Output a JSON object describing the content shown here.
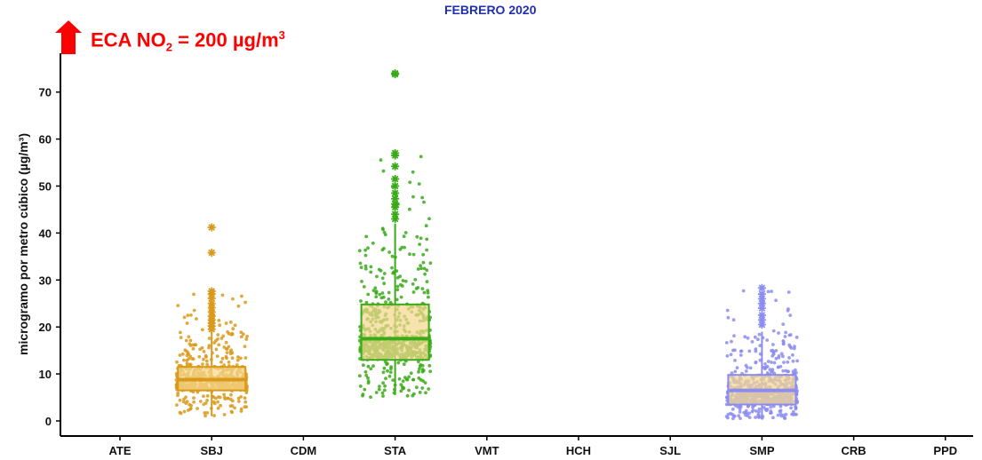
{
  "title": "FEBRERO 2020",
  "eca_label": {
    "prefix": "ECA NO",
    "sub": "2",
    "middle": " = 200 µg/m",
    "sup": "3"
  },
  "chart_data": {
    "type": "box",
    "title": "FEBRERO 2020",
    "xlabel": "",
    "ylabel": "microgramo por metro cúbico (µg/m³)",
    "ylim": [
      -2,
      77
    ],
    "yticks": [
      0,
      10,
      20,
      30,
      40,
      50,
      60,
      70
    ],
    "categories": [
      "ATE",
      "SBJ",
      "CDM",
      "STA",
      "VMT",
      "HCH",
      "SJL",
      "SMP",
      "CRB",
      "PPD"
    ],
    "boxes": [
      {
        "category": "SBJ",
        "color": "#d99a1c",
        "q1": 6.5,
        "median": 8.8,
        "q3": 11.5,
        "whisker_low": 1.0,
        "whisker_high": 19.0,
        "outliers": [
          19.5,
          20.2,
          20.8,
          21.5,
          22.3,
          23.2,
          24.1,
          25.0,
          26.1,
          27.0,
          27.6,
          35.8,
          41.2
        ],
        "point_range": [
          1,
          28
        ]
      },
      {
        "category": "STA",
        "color": "#3aaa18",
        "q1": 13.0,
        "median": 17.5,
        "q3": 24.8,
        "whisker_low": 5.5,
        "whisker_high": 42.0,
        "outliers": [
          43.0,
          44.0,
          45.5,
          46.2,
          47.3,
          48.5,
          50.0,
          51.5,
          54.2,
          56.5,
          57.0,
          73.8,
          74.0
        ],
        "point_range": [
          5,
          57
        ]
      },
      {
        "category": "SMP",
        "color": "#8c8cf0",
        "q1": 3.5,
        "median": 6.5,
        "q3": 9.8,
        "whisker_low": 0.5,
        "whisker_high": 19.0,
        "outliers": [
          20.5,
          21.5,
          22.5,
          24.0,
          25.0,
          26.0,
          27.0,
          28.3
        ],
        "point_range": [
          0.5,
          28
        ]
      }
    ],
    "box_fill": "#f5d890",
    "grid": false,
    "legend": "none"
  }
}
